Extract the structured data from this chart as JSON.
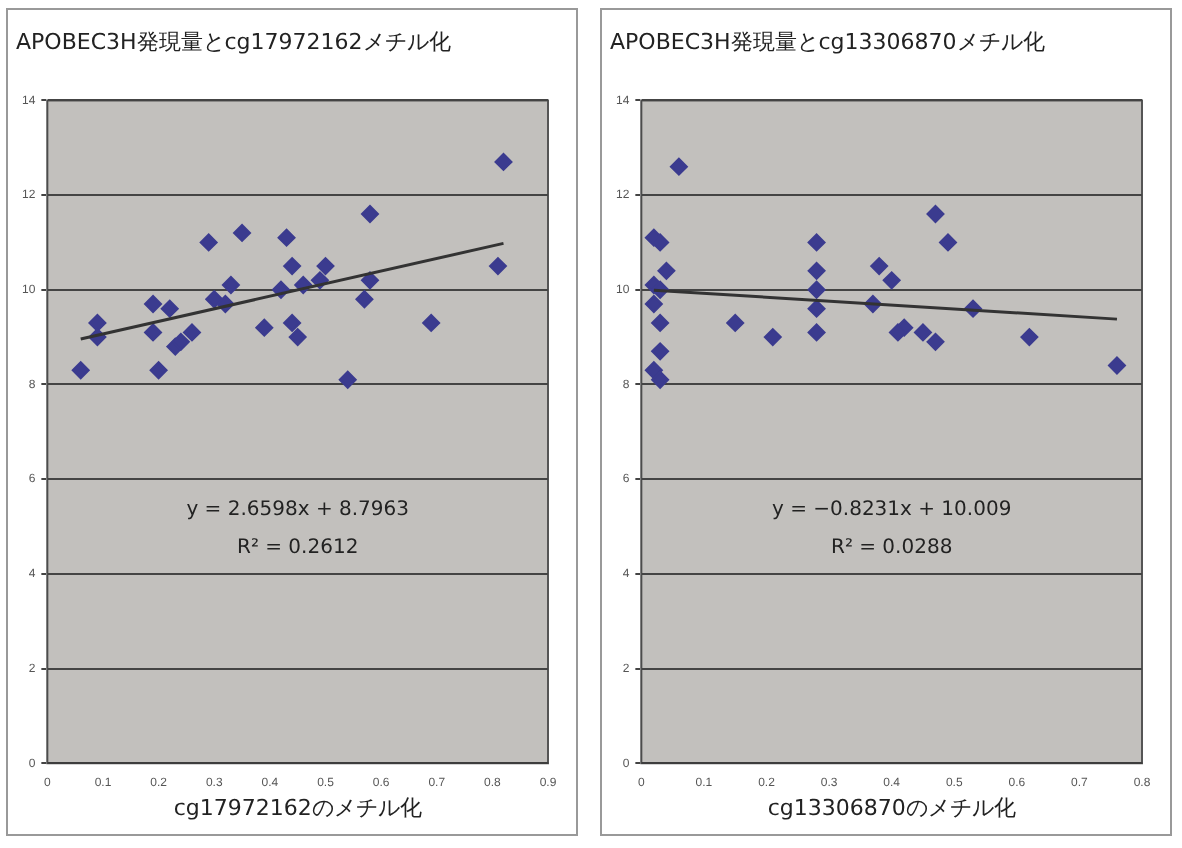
{
  "chart_data": [
    {
      "type": "scatter",
      "title": "APOBEC3H発現量とcg17972162メチル化",
      "xlabel": "cg17972162のメチル化",
      "marker": "diamond",
      "grid": "y",
      "legend": false,
      "xlim": [
        0,
        0.9
      ],
      "xticks": [
        0,
        0.1,
        0.2,
        0.3,
        0.4,
        0.5,
        0.6,
        0.7,
        0.8,
        0.9
      ],
      "ylim": [
        0,
        14
      ],
      "yticks": [
        0,
        2,
        4,
        6,
        8,
        10,
        12,
        14
      ],
      "annotations": [
        "y = 2.6598x + 8.7963",
        "R² = 0.2612"
      ],
      "series": [
        {
          "color": "#3b3b8f",
          "x": [
            0.06,
            0.09,
            0.09,
            0.19,
            0.22,
            0.19,
            0.2,
            0.23,
            0.24,
            0.26,
            0.29,
            0.35,
            0.33,
            0.3,
            0.32,
            0.39,
            0.43,
            0.42,
            0.44,
            0.44,
            0.45,
            0.46,
            0.5,
            0.49,
            0.54,
            0.58,
            0.58,
            0.57,
            0.69,
            0.82,
            0.81
          ],
          "values": [
            8.3,
            9.3,
            9.0,
            9.7,
            9.6,
            9.1,
            8.3,
            8.8,
            8.9,
            9.1,
            11.0,
            11.2,
            10.1,
            9.8,
            9.7,
            9.2,
            11.1,
            10.0,
            10.5,
            9.3,
            9.0,
            10.1,
            10.5,
            10.2,
            8.1,
            11.6,
            10.2,
            9.8,
            9.3,
            12.7,
            10.5
          ]
        },
        {
          "type": "line",
          "marker": "none",
          "color": "#333333",
          "x": [
            0.06,
            0.82
          ],
          "values": [
            8.96,
            10.98
          ]
        }
      ]
    },
    {
      "type": "scatter",
      "title": "APOBEC3H発現量とcg13306870メチル化",
      "xlabel": "cg13306870のメチル化",
      "marker": "diamond",
      "grid": "y",
      "legend": false,
      "xlim": [
        0,
        0.8
      ],
      "xticks": [
        0,
        0.1,
        0.2,
        0.3,
        0.4,
        0.5,
        0.6,
        0.7,
        0.8
      ],
      "ylim": [
        0,
        14
      ],
      "yticks": [
        0,
        2,
        4,
        6,
        8,
        10,
        12,
        14
      ],
      "annotations": [
        "y = −0.8231x + 10.009",
        "R² = 0.0288"
      ],
      "series": [
        {
          "color": "#3b3b8f",
          "x": [
            0.06,
            0.02,
            0.03,
            0.04,
            0.02,
            0.03,
            0.02,
            0.03,
            0.03,
            0.02,
            0.03,
            0.15,
            0.21,
            0.28,
            0.28,
            0.28,
            0.28,
            0.28,
            0.38,
            0.4,
            0.37,
            0.42,
            0.41,
            0.45,
            0.47,
            0.47,
            0.49,
            0.53,
            0.62,
            0.76
          ],
          "values": [
            12.6,
            11.1,
            11.0,
            10.4,
            10.1,
            10.0,
            9.7,
            9.3,
            8.7,
            8.3,
            8.1,
            9.3,
            9.0,
            11.0,
            10.4,
            10.0,
            9.6,
            9.1,
            10.5,
            10.2,
            9.7,
            9.2,
            9.1,
            9.1,
            8.9,
            11.6,
            11.0,
            9.6,
            9.0,
            8.4
          ]
        },
        {
          "type": "line",
          "marker": "none",
          "color": "#333333",
          "x": [
            0.02,
            0.76
          ],
          "values": [
            9.99,
            9.38
          ]
        }
      ]
    }
  ]
}
